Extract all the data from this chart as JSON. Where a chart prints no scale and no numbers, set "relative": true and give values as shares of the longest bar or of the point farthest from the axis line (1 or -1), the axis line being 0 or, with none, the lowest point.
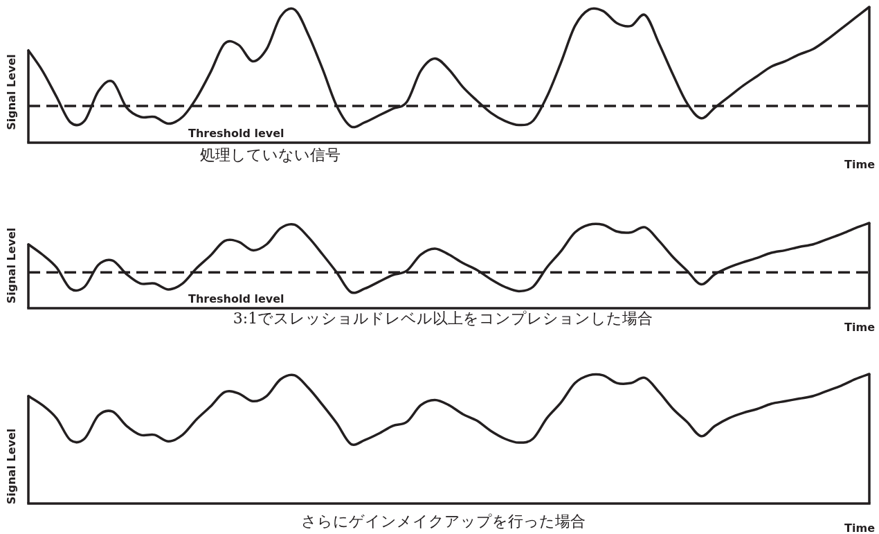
{
  "chart_data": [
    {
      "type": "line",
      "relative": true,
      "title": "処理していない信号",
      "xlabel": "Time",
      "ylabel": "Signal Level",
      "categories": [
        null,
        null,
        null,
        null,
        null,
        null,
        null,
        null,
        null,
        null,
        null,
        null,
        null,
        null,
        null,
        null,
        null,
        null,
        null,
        null,
        null,
        null,
        null,
        null,
        null,
        null,
        null,
        null,
        null,
        null,
        null,
        null,
        null,
        null,
        null,
        null,
        null,
        null,
        null,
        null,
        null,
        null,
        null,
        null,
        null,
        null,
        null,
        null,
        null,
        null,
        null,
        null,
        null,
        null,
        null,
        null,
        null,
        null,
        null,
        null,
        null
      ],
      "series": [
        {
          "color": "#231f20",
          "values": [
            0.68,
            0.53,
            0.34,
            0.15,
            0.16,
            0.38,
            0.45,
            0.26,
            0.19,
            0.19,
            0.14,
            0.19,
            0.33,
            0.52,
            0.73,
            0.72,
            0.6,
            0.69,
            0.93,
            0.98,
            0.79,
            0.54,
            0.27,
            0.12,
            0.15,
            0.2,
            0.25,
            0.3,
            0.53,
            0.62,
            0.54,
            0.41,
            0.31,
            0.22,
            0.16,
            0.13,
            0.16,
            0.34,
            0.59,
            0.86,
            0.98,
            0.97,
            0.88,
            0.86,
            0.94,
            0.73,
            0.5,
            0.29,
            0.18,
            0.26,
            0.34,
            0.42,
            0.49,
            0.56,
            0.6,
            0.65,
            0.69,
            0.76,
            0.84,
            0.92,
            1.0
          ]
        }
      ],
      "ref_lines": [
        {
          "axis": "y",
          "value": 0.27,
          "label": "Threshold level",
          "line_style": "dashed",
          "color": "#231f20"
        }
      ]
    },
    {
      "type": "line",
      "relative": true,
      "title": "3:1でスレッショルドレベル以上をコンプレションした場合",
      "xlabel": "Time",
      "ylabel": "Signal Level",
      "categories": [
        null,
        null,
        null,
        null,
        null,
        null,
        null,
        null,
        null,
        null,
        null,
        null,
        null,
        null,
        null,
        null,
        null,
        null,
        null,
        null,
        null,
        null,
        null,
        null,
        null,
        null,
        null,
        null,
        null,
        null,
        null,
        null,
        null,
        null,
        null,
        null,
        null,
        null,
        null,
        null,
        null,
        null,
        null,
        null,
        null,
        null,
        null,
        null,
        null,
        null,
        null,
        null,
        null,
        null,
        null,
        null,
        null,
        null,
        null,
        null,
        null
      ],
      "series": [
        {
          "color": "#231f20",
          "values": [
            0.75,
            0.63,
            0.48,
            0.23,
            0.25,
            0.51,
            0.56,
            0.4,
            0.29,
            0.29,
            0.22,
            0.29,
            0.47,
            0.62,
            0.79,
            0.78,
            0.68,
            0.75,
            0.94,
            0.98,
            0.83,
            0.63,
            0.42,
            0.19,
            0.23,
            0.31,
            0.39,
            0.44,
            0.63,
            0.7,
            0.63,
            0.53,
            0.45,
            0.34,
            0.25,
            0.2,
            0.25,
            0.48,
            0.67,
            0.89,
            0.98,
            0.98,
            0.9,
            0.89,
            0.95,
            0.79,
            0.6,
            0.44,
            0.28,
            0.4,
            0.48,
            0.54,
            0.59,
            0.65,
            0.68,
            0.72,
            0.75,
            0.81,
            0.87,
            0.94,
            1.0
          ]
        }
      ],
      "ref_lines": [
        {
          "axis": "y",
          "value": 0.42,
          "label": "Threshold level",
          "line_style": "dashed",
          "color": "#231f20"
        }
      ]
    },
    {
      "type": "line",
      "relative": true,
      "title": "さらにゲインメイクアップを行った場合",
      "xlabel": "Time",
      "ylabel": "Signal Level",
      "categories": [
        null,
        null,
        null,
        null,
        null,
        null,
        null,
        null,
        null,
        null,
        null,
        null,
        null,
        null,
        null,
        null,
        null,
        null,
        null,
        null,
        null,
        null,
        null,
        null,
        null,
        null,
        null,
        null,
        null,
        null,
        null,
        null,
        null,
        null,
        null,
        null,
        null,
        null,
        null,
        null,
        null,
        null,
        null,
        null,
        null,
        null,
        null,
        null,
        null,
        null,
        null,
        null,
        null,
        null,
        null,
        null,
        null,
        null,
        null,
        null,
        null
      ],
      "series": [
        {
          "color": "#231f20",
          "values": [
            0.83,
            0.76,
            0.66,
            0.49,
            0.5,
            0.68,
            0.71,
            0.6,
            0.53,
            0.53,
            0.48,
            0.53,
            0.65,
            0.75,
            0.86,
            0.85,
            0.79,
            0.83,
            0.96,
            0.99,
            0.89,
            0.76,
            0.62,
            0.46,
            0.49,
            0.54,
            0.6,
            0.63,
            0.76,
            0.8,
            0.76,
            0.69,
            0.64,
            0.56,
            0.5,
            0.47,
            0.5,
            0.66,
            0.78,
            0.93,
            0.99,
            0.99,
            0.93,
            0.93,
            0.97,
            0.86,
            0.73,
            0.63,
            0.52,
            0.6,
            0.66,
            0.7,
            0.73,
            0.77,
            0.79,
            0.81,
            0.83,
            0.87,
            0.91,
            0.96,
            1.0
          ]
        }
      ]
    }
  ]
}
